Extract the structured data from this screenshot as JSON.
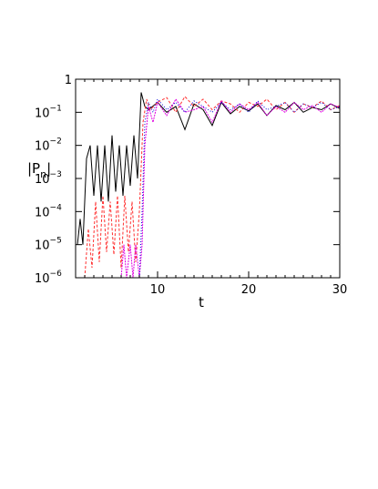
{
  "chart_data": {
    "type": "line",
    "title": "",
    "xlabel": "t",
    "ylabel": "|P_n|",
    "ylabel_parts": {
      "main": "|P",
      "sub": "n",
      "close": "|"
    },
    "xlim": [
      1,
      30
    ],
    "ylim": [
      1e-06,
      1
    ],
    "yscale": "log",
    "grid": false,
    "legend": "none",
    "x_ticks": [
      {
        "value": 10,
        "label": "10"
      },
      {
        "value": 20,
        "label": "20"
      },
      {
        "value": 30,
        "label": "30"
      }
    ],
    "y_ticks": [
      {
        "value": 1,
        "base": "1",
        "exp": ""
      },
      {
        "value": 0.1,
        "base": "10",
        "exp": "−1"
      },
      {
        "value": 0.01,
        "base": "10",
        "exp": "−2"
      },
      {
        "value": 0.001,
        "base": "10",
        "exp": "−3"
      },
      {
        "value": 0.0001,
        "base": "10",
        "exp": "−4"
      },
      {
        "value": 1e-05,
        "base": "10",
        "exp": "−5"
      },
      {
        "value": 1e-06,
        "base": "10",
        "exp": "−6"
      }
    ],
    "series": [
      {
        "color": "#000000",
        "dash": "",
        "x": [
          1.2,
          1.5,
          1.8,
          2.2,
          2.6,
          3.0,
          3.4,
          3.8,
          4.2,
          4.6,
          5.0,
          5.4,
          5.8,
          6.2,
          6.6,
          7.0,
          7.4,
          7.8,
          8.2,
          8.6,
          9.0,
          10,
          11,
          12,
          13,
          14,
          15,
          16,
          17,
          18,
          19,
          20,
          21,
          22,
          23,
          24,
          25,
          26,
          27,
          28,
          29,
          30
        ],
        "y": [
          1e-05,
          6e-05,
          1e-05,
          0.004,
          0.01,
          0.0003,
          0.01,
          0.0002,
          0.01,
          0.0002,
          0.02,
          0.0004,
          0.01,
          0.0003,
          0.01,
          0.0006,
          0.02,
          0.001,
          0.4,
          0.15,
          0.12,
          0.2,
          0.1,
          0.15,
          0.03,
          0.18,
          0.12,
          0.04,
          0.2,
          0.09,
          0.15,
          0.11,
          0.18,
          0.08,
          0.16,
          0.12,
          0.2,
          0.1,
          0.14,
          0.12,
          0.18,
          0.13
        ]
      },
      {
        "color": "#ff3030",
        "dash": "3,2",
        "x": [
          2.0,
          2.4,
          2.8,
          3.2,
          3.6,
          4.0,
          4.4,
          4.8,
          5.2,
          5.6,
          6.0,
          6.4,
          6.8,
          7.2,
          7.6,
          8.0,
          8.4,
          8.8,
          9.2,
          10,
          11,
          12,
          13,
          14,
          15,
          16,
          17,
          18,
          19,
          20,
          21,
          22,
          23,
          24,
          25,
          26,
          27,
          28,
          29,
          30
        ],
        "y": [
          1e-06,
          3e-05,
          2e-06,
          0.0002,
          3e-06,
          0.0003,
          6e-06,
          0.0002,
          5e-06,
          0.0003,
          2e-06,
          0.0003,
          6e-06,
          0.0002,
          3e-06,
          0.0001,
          0.05,
          0.25,
          0.12,
          0.2,
          0.28,
          0.1,
          0.3,
          0.15,
          0.25,
          0.12,
          0.22,
          0.18,
          0.1,
          0.2,
          0.15,
          0.25,
          0.12,
          0.2,
          0.1,
          0.18,
          0.14,
          0.22,
          0.12,
          0.16
        ]
      },
      {
        "color": "#e000e0",
        "dash": "2,1",
        "x": [
          6.0,
          6.3,
          6.6,
          7.0,
          7.3,
          7.6,
          8.0,
          8.3,
          8.6,
          9.0,
          9.5,
          10,
          11,
          12,
          13,
          14,
          15,
          16,
          17,
          18,
          19,
          20,
          21,
          22,
          23,
          24,
          25,
          26,
          27,
          28,
          29,
          30
        ],
        "y": [
          1e-06,
          1e-05,
          1e-06,
          1e-05,
          1e-06,
          1e-05,
          1e-06,
          1e-05,
          0.01,
          0.15,
          0.05,
          0.2,
          0.08,
          0.25,
          0.1,
          0.12,
          0.15,
          0.05,
          0.22,
          0.1,
          0.18,
          0.12,
          0.2,
          0.08,
          0.15,
          0.1,
          0.2,
          0.12,
          0.16,
          0.1,
          0.18,
          0.14
        ]
      },
      {
        "color": "#0000dd",
        "dash": "1,2",
        "x": [
          8.0,
          8.3,
          8.6,
          9.0,
          9.5,
          10,
          11,
          12,
          13,
          14,
          15,
          16,
          17,
          18,
          19,
          20,
          21,
          22,
          23,
          24,
          25,
          26,
          27,
          28,
          29,
          30
        ],
        "y": [
          1e-06,
          0.0001,
          0.05,
          0.2,
          0.1,
          0.25,
          0.12,
          0.2,
          0.1,
          0.22,
          0.15,
          0.1,
          0.2,
          0.12,
          0.18,
          0.1,
          0.22,
          0.12,
          0.15,
          0.2,
          0.1,
          0.18,
          0.14,
          0.2,
          0.12,
          0.15
        ]
      }
    ]
  }
}
